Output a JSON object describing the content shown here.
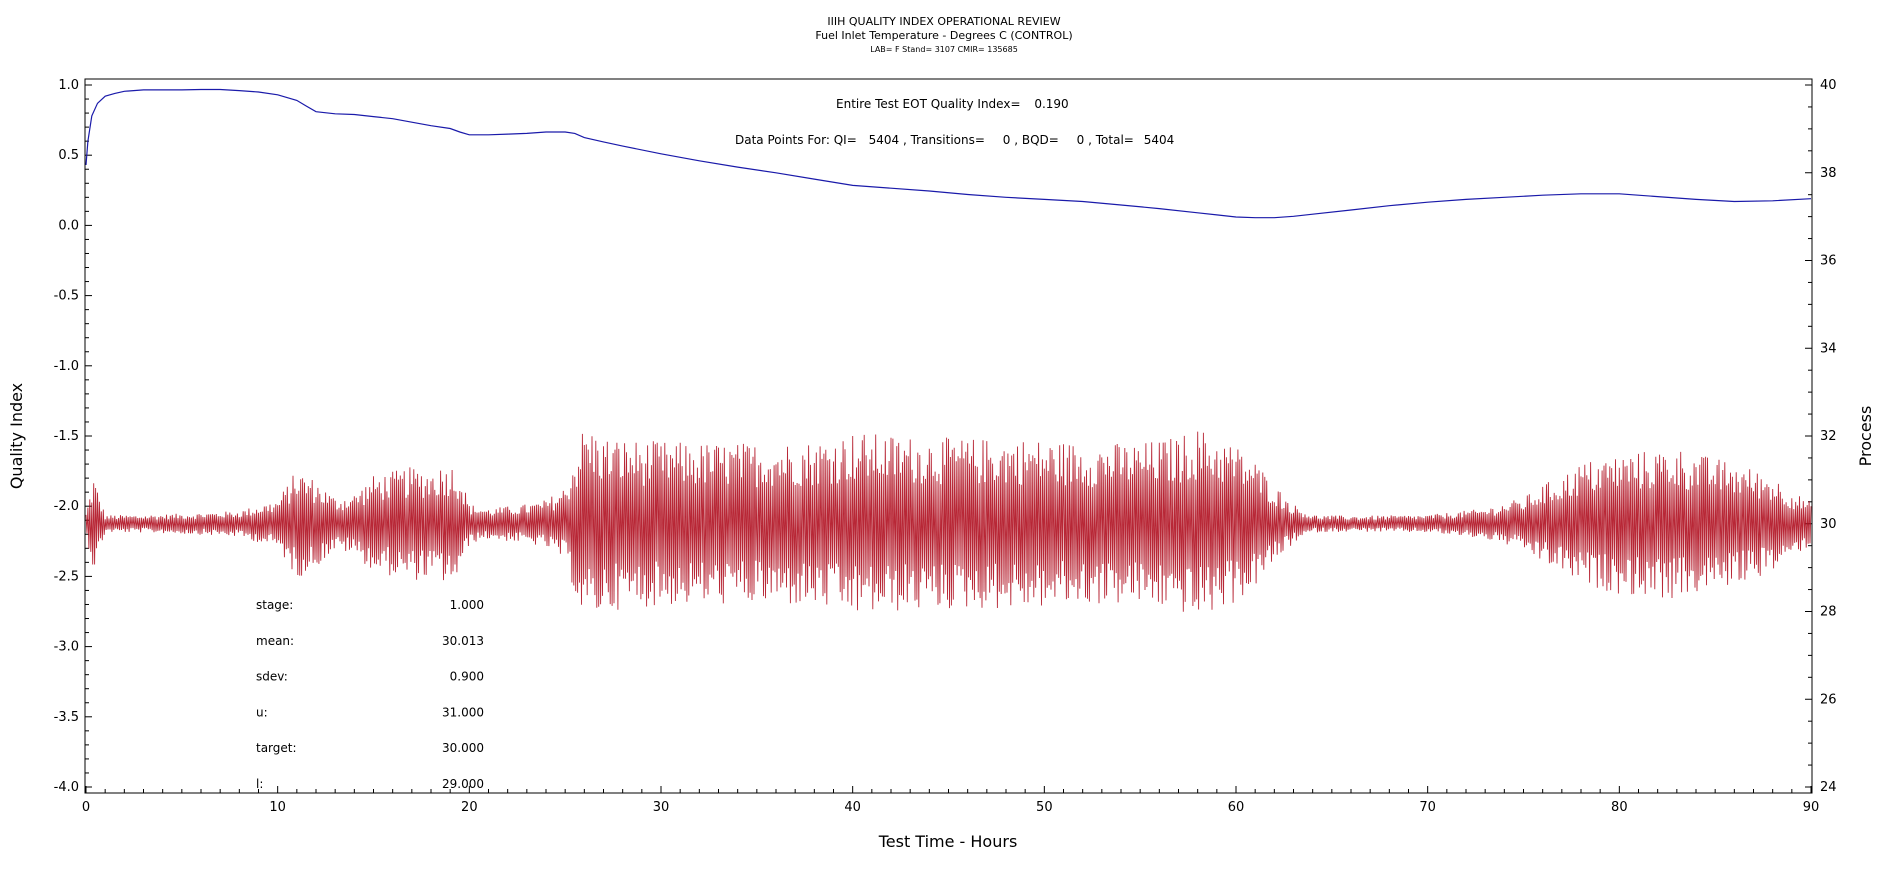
{
  "chart_data": {
    "type": "line",
    "title": "IIIH QUALITY INDEX OPERATIONAL REVIEW",
    "subtitle": "Fuel Inlet Temperature - Degrees C (CONTROL)",
    "subtitle2": "LAB= F Stand= 3107 CMIR= 135685",
    "xlabel": "Test Time - Hours",
    "ylabel_left": "Quality Index",
    "ylabel_right": "Process",
    "xlim": [
      0,
      90
    ],
    "ylim_left": [
      -4.0,
      1.0
    ],
    "ylim_right": [
      24,
      40
    ],
    "x_ticks": [
      0,
      10,
      20,
      30,
      40,
      50,
      60,
      70,
      80,
      90
    ],
    "y_left_ticks": [
      "1.0",
      "0.5",
      "0.0",
      "-0.5",
      "-1.0",
      "-1.5",
      "-2.0",
      "-2.5",
      "-3.0",
      "-3.5",
      "-4.0"
    ],
    "y_right_ticks": [
      40,
      38,
      36,
      34,
      32,
      30,
      28,
      26,
      24
    ],
    "annotations": {
      "eot_label": "Entire Test EOT Quality Index=",
      "eot_value": "0.190",
      "points_label": "Data Points For: QI=",
      "qi_count": "5404",
      "transitions_label": ", Transitions=",
      "transitions": "0",
      "bqd_label": ", BQD=",
      "bqd": "0",
      "total_label": ", Total=",
      "total": "5404"
    },
    "stats": [
      {
        "label": "stage:",
        "value": "1.000"
      },
      {
        "label": "mean:",
        "value": "30.013"
      },
      {
        "label": "sdev:",
        "value": "0.900"
      },
      {
        "label": "u:",
        "value": "31.000"
      },
      {
        "label": "target:",
        "value": "30.000"
      },
      {
        "label": "l:",
        "value": "29.000"
      }
    ],
    "series": [
      {
        "name": "Quality Index",
        "axis": "left",
        "color": "#1a1aaa",
        "x": [
          0,
          0.1,
          0.3,
          0.6,
          1,
          1.5,
          2,
          3,
          4,
          5,
          6,
          7,
          8,
          9,
          10,
          11,
          11.5,
          12,
          13,
          14,
          15,
          16,
          17,
          18,
          19,
          19.5,
          20,
          21,
          22,
          23,
          24,
          25,
          25.5,
          26,
          27,
          28,
          30,
          32,
          34,
          36,
          38,
          40,
          42,
          44,
          46,
          48,
          50,
          52,
          54,
          56,
          58,
          59,
          60,
          61,
          62,
          63,
          64,
          66,
          68,
          70,
          72,
          74,
          76,
          78,
          80,
          82,
          84,
          86,
          88,
          90
        ],
        "values": [
          0.43,
          0.6,
          0.78,
          0.87,
          0.92,
          0.94,
          0.955,
          0.965,
          0.965,
          0.965,
          0.968,
          0.968,
          0.96,
          0.95,
          0.93,
          0.89,
          0.85,
          0.81,
          0.795,
          0.79,
          0.775,
          0.76,
          0.735,
          0.71,
          0.69,
          0.665,
          0.645,
          0.645,
          0.65,
          0.655,
          0.665,
          0.665,
          0.655,
          0.625,
          0.595,
          0.565,
          0.51,
          0.46,
          0.415,
          0.375,
          0.33,
          0.285,
          0.265,
          0.245,
          0.22,
          0.2,
          0.185,
          0.17,
          0.145,
          0.12,
          0.09,
          0.075,
          0.06,
          0.055,
          0.055,
          0.065,
          0.08,
          0.11,
          0.14,
          0.165,
          0.185,
          0.2,
          0.215,
          0.225,
          0.225,
          0.205,
          0.185,
          0.17,
          0.175,
          0.19
        ]
      },
      {
        "name": "Process",
        "axis": "right",
        "color": "#b01020",
        "amplitude_profile": {
          "x": [
            0,
            0.4,
            1,
            3,
            6,
            8,
            10,
            11,
            12,
            13,
            14,
            15,
            16,
            17,
            18,
            19,
            19.5,
            20,
            21,
            22,
            23,
            24,
            25,
            26,
            27,
            29,
            32,
            35,
            38,
            40,
            43,
            46,
            49,
            52,
            55,
            57,
            58,
            59,
            60,
            61,
            62,
            63,
            64,
            66,
            70,
            73,
            75,
            76,
            77,
            78,
            80,
            82,
            83,
            84,
            86,
            88,
            89,
            90
          ],
          "amp": [
            0.25,
            1.1,
            0.2,
            0.2,
            0.25,
            0.3,
            0.55,
            1.25,
            1.0,
            0.6,
            0.7,
            1.1,
            1.2,
            1.3,
            1.25,
            1.4,
            1.2,
            0.45,
            0.35,
            0.4,
            0.45,
            0.55,
            0.85,
            2.3,
            2.0,
            1.9,
            1.85,
            1.85,
            1.9,
            2.1,
            2.0,
            1.95,
            1.95,
            1.85,
            1.85,
            2.0,
            2.2,
            2.0,
            1.8,
            1.45,
            0.9,
            0.45,
            0.2,
            0.18,
            0.2,
            0.35,
            0.6,
            0.9,
            1.1,
            1.4,
            1.6,
            1.7,
            1.75,
            1.6,
            1.4,
            1.1,
            0.75,
            0.5
          ]
        },
        "mean": 30.0
      }
    ]
  }
}
